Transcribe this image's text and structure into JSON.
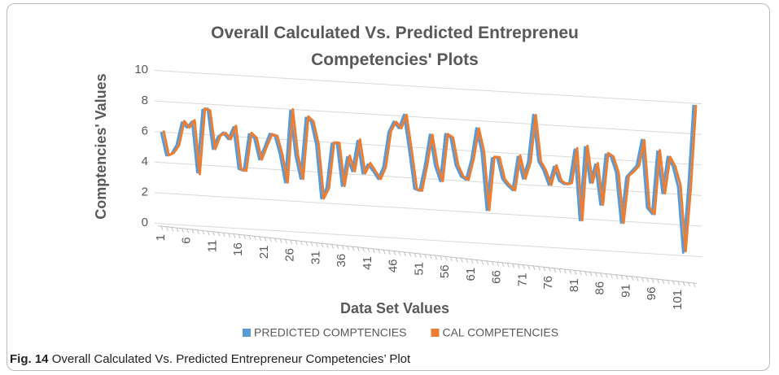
{
  "chart_data": {
    "type": "line",
    "title": "Overall Calculated Vs. Predicted Entrepreneu Competencies' Plots",
    "y_label": "Comptencies' Values",
    "x_label": "Data Set Values",
    "caption_label": "Fig. 14",
    "caption_text": "Overall Calculated Vs. Predicted Entrepreneur Competencies’ Plot",
    "categories": [
      "1",
      null,
      null,
      null,
      null,
      "6",
      null,
      null,
      null,
      null,
      "11",
      null,
      null,
      null,
      null,
      "16",
      null,
      null,
      null,
      null,
      "21",
      null,
      null,
      null,
      null,
      "26",
      null,
      null,
      null,
      null,
      "31",
      null,
      null,
      null,
      null,
      "36",
      null,
      null,
      null,
      null,
      "41",
      null,
      null,
      null,
      null,
      "46",
      null,
      null,
      null,
      null,
      "51",
      null,
      null,
      null,
      null,
      "56",
      null,
      null,
      null,
      null,
      "61",
      null,
      null,
      null,
      null,
      "66",
      null,
      null,
      null,
      null,
      "71",
      null,
      null,
      null,
      null,
      "76",
      null,
      null,
      null,
      null,
      "81",
      null,
      null,
      null,
      null,
      "86",
      null,
      null,
      null,
      null,
      "91",
      null,
      null,
      null,
      null,
      "96",
      null,
      null,
      null,
      null,
      "101",
      null,
      null,
      null
    ],
    "series": [
      {
        "name": "PREDICTED COMPTENCIES",
        "color": "#5b9bd5",
        "values": [
          6.0,
          4.5,
          4.6,
          5.2,
          6.7,
          6.4,
          6.8,
          3.5,
          7.6,
          7.7,
          5.1,
          5.9,
          6.2,
          5.8,
          6.6,
          3.9,
          3.8,
          6.2,
          6.0,
          4.6,
          5.4,
          6.3,
          6.2,
          5.0,
          3.2,
          7.9,
          5.0,
          3.5,
          7.5,
          7.3,
          5.8,
          2.3,
          3.0,
          5.9,
          6.0,
          3.2,
          5.1,
          4.2,
          6.2,
          4.1,
          4.7,
          4.3,
          3.8,
          4.6,
          6.9,
          7.6,
          7.2,
          8.1,
          5.8,
          3.3,
          3.2,
          4.8,
          6.9,
          4.9,
          3.9,
          7.0,
          6.8,
          5.0,
          4.3,
          4.1,
          5.4,
          7.5,
          6.0,
          2.2,
          5.6,
          5.7,
          4.3,
          3.9,
          3.6,
          5.8,
          4.4,
          5.5,
          8.6,
          5.6,
          5.0,
          4.1,
          5.3,
          4.4,
          4.2,
          4.3,
          6.5,
          1.9,
          6.7,
          4.4,
          5.6,
          3.0,
          6.3,
          6.2,
          5.2,
          1.9,
          4.9,
          5.3,
          5.7,
          7.4,
          3.0,
          2.6,
          6.7,
          4.0,
          6.4,
          5.8,
          4.5,
          0.2,
          4.5,
          9.9
        ]
      },
      {
        "name": "CAL COMPETENCIES",
        "color": "#ed7d31",
        "values": [
          6.1,
          4.5,
          4.7,
          5.2,
          6.8,
          6.4,
          6.9,
          3.4,
          7.7,
          7.6,
          5.1,
          6.0,
          6.2,
          5.8,
          6.7,
          3.9,
          3.8,
          6.3,
          6.0,
          4.6,
          5.5,
          6.3,
          6.2,
          5.0,
          3.2,
          8.0,
          5.0,
          3.5,
          7.6,
          7.3,
          5.8,
          2.3,
          3.0,
          6.0,
          6.0,
          3.2,
          5.2,
          4.2,
          6.3,
          4.1,
          4.8,
          4.3,
          3.8,
          4.6,
          7.0,
          7.6,
          7.2,
          8.1,
          5.8,
          3.3,
          3.2,
          4.9,
          6.9,
          4.9,
          3.9,
          7.0,
          6.8,
          5.0,
          4.3,
          4.1,
          5.5,
          7.5,
          6.0,
          2.2,
          5.7,
          5.7,
          4.3,
          3.9,
          3.6,
          5.9,
          4.4,
          5.5,
          8.6,
          5.6,
          5.0,
          4.1,
          5.4,
          4.4,
          4.2,
          4.3,
          6.6,
          1.9,
          6.8,
          4.4,
          5.7,
          3.0,
          6.4,
          6.2,
          5.2,
          1.9,
          5.0,
          5.3,
          5.7,
          7.4,
          3.0,
          2.6,
          6.8,
          4.0,
          6.4,
          5.8,
          4.6,
          0.3,
          4.5,
          9.9
        ]
      }
    ],
    "ylim": [
      0,
      10
    ],
    "yticks": [
      0,
      2,
      4,
      6,
      8,
      10
    ],
    "grid": true,
    "legend": "bottom"
  }
}
